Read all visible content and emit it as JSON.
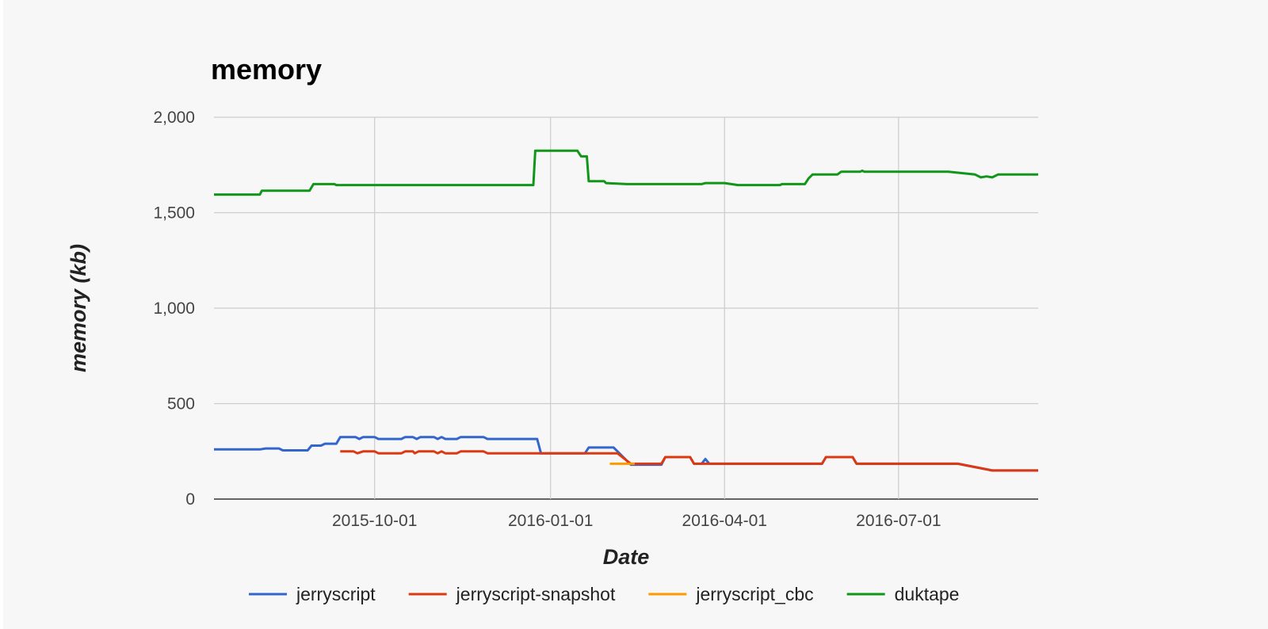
{
  "chart_data": {
    "type": "line",
    "title": "memory",
    "xlabel": "Date",
    "ylabel": "memory (kb)",
    "x_ticks": [
      "2015-10-01",
      "2016-01-01",
      "2016-04-01",
      "2016-07-01"
    ],
    "y_ticks": [
      "0",
      "500",
      "1,000",
      "1,500",
      "2,000"
    ],
    "ylim": [
      0,
      2000
    ],
    "xlim": [
      "2015-07-09",
      "2016-09-12"
    ],
    "grid": true,
    "legend_position": "bottom",
    "series": [
      {
        "name": "jerryscript",
        "color": "#3366cc",
        "points": [
          [
            "2015-07-09",
            260
          ],
          [
            "2015-08-02",
            260
          ],
          [
            "2015-08-05",
            265
          ],
          [
            "2015-08-12",
            265
          ],
          [
            "2015-08-14",
            255
          ],
          [
            "2015-08-27",
            255
          ],
          [
            "2015-08-29",
            280
          ],
          [
            "2015-09-03",
            280
          ],
          [
            "2015-09-05",
            290
          ],
          [
            "2015-09-11",
            290
          ],
          [
            "2015-09-13",
            325
          ],
          [
            "2015-09-21",
            325
          ],
          [
            "2015-09-23",
            315
          ],
          [
            "2015-09-25",
            325
          ],
          [
            "2015-10-01",
            325
          ],
          [
            "2015-10-03",
            315
          ],
          [
            "2015-10-15",
            315
          ],
          [
            "2015-10-17",
            325
          ],
          [
            "2015-10-21",
            325
          ],
          [
            "2015-10-23",
            315
          ],
          [
            "2015-10-25",
            325
          ],
          [
            "2015-11-01",
            325
          ],
          [
            "2015-11-03",
            315
          ],
          [
            "2015-11-05",
            325
          ],
          [
            "2015-11-07",
            315
          ],
          [
            "2015-11-13",
            315
          ],
          [
            "2015-11-15",
            325
          ],
          [
            "2015-11-27",
            325
          ],
          [
            "2015-11-29",
            315
          ],
          [
            "2015-12-25",
            315
          ],
          [
            "2015-12-27",
            240
          ],
          [
            "2016-01-19",
            240
          ],
          [
            "2016-01-21",
            270
          ],
          [
            "2016-02-03",
            270
          ],
          [
            "2016-02-12",
            180
          ],
          [
            "2016-02-28",
            180
          ],
          [
            "2016-03-01",
            220
          ],
          [
            "2016-03-14",
            220
          ],
          [
            "2016-03-16",
            185
          ],
          [
            "2016-03-20",
            185
          ],
          [
            "2016-03-22",
            210
          ],
          [
            "2016-03-24",
            185
          ],
          [
            "2016-05-22",
            185
          ],
          [
            "2016-05-24",
            220
          ],
          [
            "2016-06-07",
            220
          ],
          [
            "2016-06-09",
            185
          ],
          [
            "2016-08-01",
            185
          ],
          [
            "2016-08-19",
            150
          ],
          [
            "2016-09-12",
            150
          ]
        ]
      },
      {
        "name": "jerryscript-snapshot",
        "color": "#dc3912",
        "points": [
          [
            "2015-09-13",
            250
          ],
          [
            "2015-09-20",
            250
          ],
          [
            "2015-09-22",
            240
          ],
          [
            "2015-09-25",
            250
          ],
          [
            "2015-10-01",
            250
          ],
          [
            "2015-10-03",
            240
          ],
          [
            "2015-10-15",
            240
          ],
          [
            "2015-10-17",
            250
          ],
          [
            "2015-10-21",
            250
          ],
          [
            "2015-10-22",
            240
          ],
          [
            "2015-10-24",
            250
          ],
          [
            "2015-11-01",
            250
          ],
          [
            "2015-11-03",
            240
          ],
          [
            "2015-11-05",
            250
          ],
          [
            "2015-11-07",
            240
          ],
          [
            "2015-11-13",
            240
          ],
          [
            "2015-11-15",
            250
          ],
          [
            "2015-11-27",
            250
          ],
          [
            "2015-11-29",
            240
          ],
          [
            "2016-02-05",
            240
          ],
          [
            "2016-02-12",
            185
          ],
          [
            "2016-02-28",
            185
          ],
          [
            "2016-03-01",
            220
          ],
          [
            "2016-03-14",
            220
          ],
          [
            "2016-03-16",
            185
          ],
          [
            "2016-05-22",
            185
          ],
          [
            "2016-05-24",
            220
          ],
          [
            "2016-06-07",
            220
          ],
          [
            "2016-06-09",
            185
          ],
          [
            "2016-08-01",
            185
          ],
          [
            "2016-08-19",
            150
          ],
          [
            "2016-09-12",
            150
          ]
        ]
      },
      {
        "name": "jerryscript_cbc",
        "color": "#ff9900",
        "points": [
          [
            "2016-02-01",
            185
          ],
          [
            "2016-02-14",
            185
          ]
        ]
      },
      {
        "name": "duktape",
        "color": "#109618",
        "points": [
          [
            "2015-07-09",
            1595
          ],
          [
            "2015-08-02",
            1595
          ],
          [
            "2015-08-03",
            1615
          ],
          [
            "2015-08-28",
            1615
          ],
          [
            "2015-08-30",
            1650
          ],
          [
            "2015-09-10",
            1650
          ],
          [
            "2015-09-11",
            1645
          ],
          [
            "2015-12-23",
            1645
          ],
          [
            "2015-12-24",
            1825
          ],
          [
            "2016-01-15",
            1825
          ],
          [
            "2016-01-17",
            1795
          ],
          [
            "2016-01-20",
            1795
          ],
          [
            "2016-01-21",
            1665
          ],
          [
            "2016-01-29",
            1665
          ],
          [
            "2016-01-30",
            1655
          ],
          [
            "2016-02-10",
            1650
          ],
          [
            "2016-03-20",
            1650
          ],
          [
            "2016-03-22",
            1655
          ],
          [
            "2016-04-01",
            1655
          ],
          [
            "2016-04-08",
            1645
          ],
          [
            "2016-04-30",
            1645
          ],
          [
            "2016-05-01",
            1650
          ],
          [
            "2016-05-13",
            1650
          ],
          [
            "2016-05-15",
            1680
          ],
          [
            "2016-05-17",
            1700
          ],
          [
            "2016-05-30",
            1700
          ],
          [
            "2016-06-01",
            1715
          ],
          [
            "2016-06-11",
            1715
          ],
          [
            "2016-06-12",
            1720
          ],
          [
            "2016-06-13",
            1715
          ],
          [
            "2016-07-27",
            1715
          ],
          [
            "2016-08-10",
            1700
          ],
          [
            "2016-08-13",
            1685
          ],
          [
            "2016-08-16",
            1690
          ],
          [
            "2016-08-19",
            1685
          ],
          [
            "2016-08-22",
            1700
          ],
          [
            "2016-09-12",
            1700
          ]
        ]
      }
    ]
  }
}
